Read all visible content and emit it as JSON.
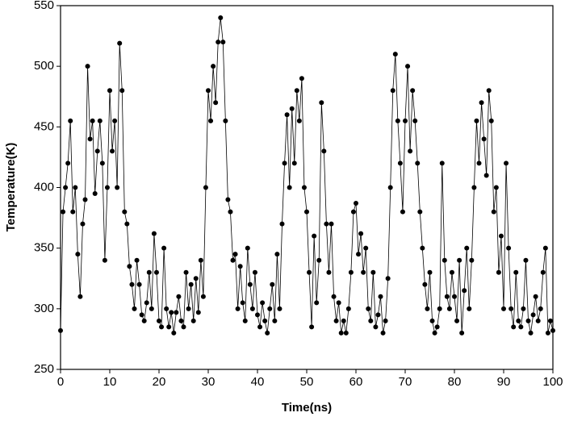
{
  "chart_data": {
    "type": "line",
    "xlabel": "Time(ns)",
    "ylabel": "Temperature(K)",
    "color": "#000000",
    "x": [
      0,
      0.5,
      1,
      1.5,
      2,
      2.5,
      3,
      3.5,
      4,
      4.5,
      5,
      5.5,
      6,
      6.5,
      7,
      7.5,
      8,
      8.5,
      9,
      9.5,
      10,
      10.5,
      11,
      11.5,
      12,
      12.5,
      13,
      13.5,
      14,
      14.5,
      15,
      15.5,
      16,
      16.5,
      17,
      17.5,
      18,
      18.5,
      19,
      19.5,
      20,
      20.5,
      21,
      21.5,
      22,
      22.5,
      23,
      23.5,
      24,
      24.5,
      25,
      25.5,
      26,
      26.5,
      27,
      27.5,
      28,
      28.5,
      29,
      29.5,
      30,
      30.5,
      31,
      31.5,
      32,
      32.5,
      33,
      33.5,
      34,
      34.5,
      35,
      35.5,
      36,
      36.5,
      37,
      37.5,
      38,
      38.5,
      39,
      39.5,
      40,
      40.5,
      41,
      41.5,
      42,
      42.5,
      43,
      43.5,
      44,
      44.5,
      45,
      45.5,
      46,
      46.5,
      47,
      47.5,
      48,
      48.5,
      49,
      49.5,
      50,
      50.5,
      51,
      51.5,
      52,
      52.5,
      53,
      53.5,
      54,
      54.5,
      55,
      55.5,
      56,
      56.5,
      57,
      57.5,
      58,
      58.5,
      59,
      59.5,
      60,
      60.5,
      61,
      61.5,
      62,
      62.5,
      63,
      63.5,
      64,
      64.5,
      65,
      65.5,
      66,
      66.5,
      67,
      67.5,
      68,
      68.5,
      69,
      69.5,
      70,
      70.5,
      71,
      71.5,
      72,
      72.5,
      73,
      73.5,
      74,
      74.5,
      75,
      75.5,
      76,
      76.5,
      77,
      77.5,
      78,
      78.5,
      79,
      79.5,
      80,
      80.5,
      81,
      81.5,
      82,
      82.5,
      83,
      83.5,
      84,
      84.5,
      85,
      85.5,
      86,
      86.5,
      87,
      87.5,
      88,
      88.5,
      89,
      89.5,
      90,
      90.5,
      91,
      91.5,
      92,
      92.5,
      93,
      93.5,
      94,
      94.5,
      95,
      95.5,
      96,
      96.5,
      97,
      97.5,
      98,
      98.5,
      99,
      99.5,
      100
    ],
    "values": [
      282,
      380,
      400,
      420,
      455,
      380,
      400,
      345,
      310,
      370,
      390,
      500,
      440,
      455,
      395,
      430,
      455,
      420,
      340,
      400,
      480,
      430,
      455,
      400,
      519,
      480,
      380,
      370,
      335,
      320,
      300,
      340,
      320,
      295,
      290,
      305,
      330,
      300,
      362,
      330,
      290,
      285,
      350,
      300,
      285,
      297,
      280,
      297,
      310,
      290,
      285,
      330,
      300,
      320,
      290,
      325,
      297,
      340,
      310,
      400,
      480,
      455,
      500,
      470,
      520,
      540,
      520,
      455,
      390,
      380,
      340,
      345,
      300,
      335,
      305,
      290,
      350,
      320,
      300,
      330,
      295,
      285,
      305,
      290,
      280,
      300,
      320,
      290,
      345,
      300,
      370,
      420,
      460,
      400,
      465,
      420,
      480,
      455,
      490,
      400,
      380,
      330,
      285,
      360,
      305,
      340,
      470,
      430,
      370,
      330,
      370,
      310,
      290,
      305,
      280,
      290,
      280,
      300,
      330,
      380,
      387,
      345,
      362,
      330,
      350,
      300,
      290,
      330,
      285,
      295,
      310,
      280,
      290,
      325,
      400,
      480,
      510,
      455,
      420,
      380,
      455,
      500,
      430,
      480,
      455,
      420,
      380,
      350,
      320,
      300,
      330,
      290,
      280,
      285,
      300,
      420,
      340,
      310,
      300,
      330,
      310,
      290,
      340,
      280,
      315,
      350,
      300,
      340,
      400,
      455,
      420,
      470,
      440,
      410,
      480,
      455,
      380,
      400,
      330,
      360,
      300,
      420,
      350,
      300,
      285,
      330,
      290,
      285,
      300,
      340,
      290,
      280,
      295,
      310,
      290,
      300,
      330,
      350,
      280,
      290,
      282
    ],
    "xlim": [
      0,
      100
    ],
    "xticks": [
      0,
      10,
      20,
      30,
      40,
      50,
      60,
      70,
      80,
      90,
      100
    ],
    "ylim": [
      250,
      550
    ],
    "yticks": [
      250,
      300,
      350,
      400,
      450,
      500,
      550
    ]
  }
}
